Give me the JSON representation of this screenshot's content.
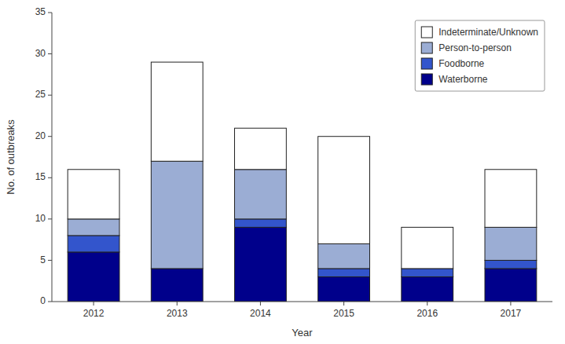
{
  "chart_data": {
    "type": "bar",
    "stacked": true,
    "xlabel": "Year",
    "ylabel": "No. of outbreaks",
    "categories": [
      "2012",
      "2013",
      "2014",
      "2015",
      "2016",
      "2017"
    ],
    "series": [
      {
        "name": "Waterborne",
        "color": "#00008B",
        "values": [
          6,
          4,
          9,
          3,
          3,
          4
        ]
      },
      {
        "name": "Foodborne",
        "color": "#3355CC",
        "values": [
          2,
          0,
          1,
          1,
          1,
          1
        ]
      },
      {
        "name": "Person-to-person",
        "color": "#9BADD4",
        "values": [
          2,
          13,
          6,
          3,
          0,
          4
        ]
      },
      {
        "name": "Indeterminate/Unknown",
        "color": "#FFFFFF",
        "values": [
          6,
          12,
          5,
          13,
          5,
          7
        ]
      }
    ],
    "ylim": [
      0,
      35
    ],
    "yticks": [
      0,
      5,
      10,
      15,
      20,
      25,
      30,
      35
    ],
    "grid": false,
    "legend": "upper right"
  }
}
